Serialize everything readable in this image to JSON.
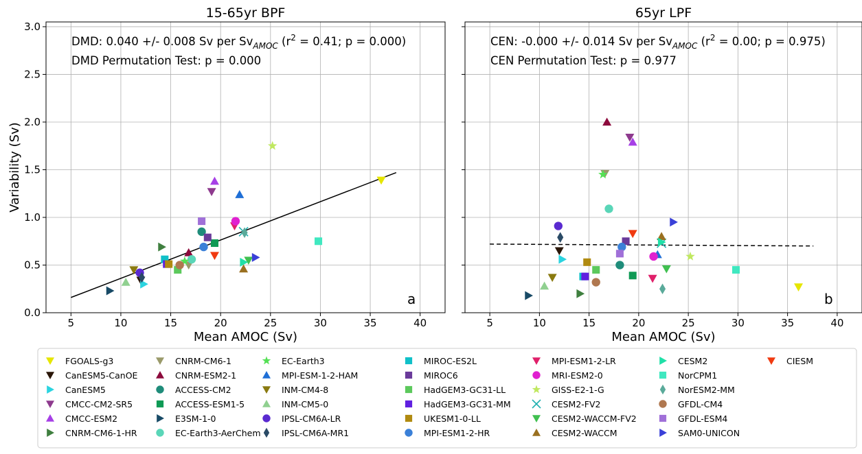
{
  "chart_data": [
    {
      "type": "scatter",
      "title": "15-65yr BPF",
      "xlabel": "Mean AMOC (Sv)",
      "ylabel": "Variability (Sv)",
      "xlim": [
        2.5,
        42.5
      ],
      "ylim": [
        0.0,
        3.05
      ],
      "xticks": [
        5,
        10,
        15,
        20,
        25,
        30,
        35,
        40
      ],
      "yticks": [
        0.0,
        0.5,
        1.0,
        1.5,
        2.0,
        2.5,
        3.0
      ],
      "ytick_labels": [
        "0.0",
        "0.5",
        "1.0",
        "1.5",
        "2.0",
        "2.5",
        "3.0"
      ],
      "grid": true,
      "annotation_line1": {
        "prefix": "DMD:  0.040 +/- 0.008 Sv per Sv",
        "sub": "AMOC",
        "mid": " (r",
        "sup": "2",
        "suffix": " = 0.41; p = 0.000)"
      },
      "annotation_line2": "DMD Permutation Test: p = 0.000",
      "panel_letter": "a",
      "fit": {
        "x": [
          5,
          37.6
        ],
        "y": [
          0.16,
          1.47
        ],
        "style": "solid"
      },
      "points": [
        {
          "model": "FGOALS-g3",
          "x": 36.1,
          "y": 1.39
        },
        {
          "model": "CanESM5-CanOE",
          "x": 12.0,
          "y": 0.34
        },
        {
          "model": "CanESM5",
          "x": 12.3,
          "y": 0.3
        },
        {
          "model": "CMCC-CM2-SR5",
          "x": 19.1,
          "y": 1.27
        },
        {
          "model": "CMCC-ESM2",
          "x": 19.4,
          "y": 1.38
        },
        {
          "model": "CNRM-CM6-1-HR",
          "x": 14.1,
          "y": 0.69
        },
        {
          "model": "CNRM-CM6-1",
          "x": 16.8,
          "y": 0.5
        },
        {
          "model": "CNRM-ESM2-1",
          "x": 16.8,
          "y": 0.63
        },
        {
          "model": "ACCESS-CM2",
          "x": 18.1,
          "y": 0.85
        },
        {
          "model": "ACCESS-ESM1-5",
          "x": 19.4,
          "y": 0.73
        },
        {
          "model": "E3SM-1-0",
          "x": 8.9,
          "y": 0.23
        },
        {
          "model": "EC-Earth3-AerChem",
          "x": 17.1,
          "y": 0.56
        },
        {
          "model": "EC-Earth3",
          "x": 16.4,
          "y": 0.54
        },
        {
          "model": "MPI-ESM-1-2-HAM",
          "x": 21.9,
          "y": 1.24
        },
        {
          "model": "INM-CM4-8",
          "x": 11.3,
          "y": 0.45
        },
        {
          "model": "INM-CM5-0",
          "x": 10.5,
          "y": 0.32
        },
        {
          "model": "IPSL-CM6A-LR",
          "x": 11.9,
          "y": 0.42
        },
        {
          "model": "IPSL-CM6A-MR1",
          "x": 12.1,
          "y": 0.37
        },
        {
          "model": "MIROC-ES2L",
          "x": 14.4,
          "y": 0.56
        },
        {
          "model": "MIROC6",
          "x": 18.7,
          "y": 0.79
        },
        {
          "model": "HadGEM3-GC31-LL",
          "x": 15.7,
          "y": 0.45
        },
        {
          "model": "HadGEM3-GC31-MM",
          "x": 14.6,
          "y": 0.51
        },
        {
          "model": "UKESM1-0-LL",
          "x": 14.8,
          "y": 0.51
        },
        {
          "model": "MPI-ESM1-2-HR",
          "x": 18.3,
          "y": 0.69
        },
        {
          "model": "MPI-ESM1-2-LR",
          "x": 21.4,
          "y": 0.91
        },
        {
          "model": "MRI-ESM2-0",
          "x": 21.5,
          "y": 0.96
        },
        {
          "model": "GISS-E2-1-G",
          "x": 25.2,
          "y": 1.75
        },
        {
          "model": "CESM2-FV2",
          "x": 22.3,
          "y": 0.85
        },
        {
          "model": "CESM2-WACCM-FV2",
          "x": 22.8,
          "y": 0.55
        },
        {
          "model": "CESM2-WACCM",
          "x": 22.3,
          "y": 0.46
        },
        {
          "model": "CESM2",
          "x": 22.3,
          "y": 0.53
        },
        {
          "model": "NorCPM1",
          "x": 29.8,
          "y": 0.75
        },
        {
          "model": "NorESM2-MM",
          "x": 22.4,
          "y": 0.84
        },
        {
          "model": "GFDL-CM4",
          "x": 15.9,
          "y": 0.5
        },
        {
          "model": "GFDL-ESM4",
          "x": 18.1,
          "y": 0.96
        },
        {
          "model": "SAM0-UNICON",
          "x": 23.5,
          "y": 0.58
        },
        {
          "model": "CIESM",
          "x": 19.4,
          "y": 0.6
        }
      ]
    },
    {
      "type": "scatter",
      "title": "65yr LPF",
      "xlabel": "Mean AMOC (Sv)",
      "ylabel": "",
      "xlim": [
        2.5,
        42.5
      ],
      "ylim": [
        0.0,
        3.05
      ],
      "xticks": [
        5,
        10,
        15,
        20,
        25,
        30,
        35,
        40
      ],
      "yticks": [
        0.0,
        0.5,
        1.0,
        1.5,
        2.0,
        2.5,
        3.0
      ],
      "grid": true,
      "annotation_line1": {
        "prefix": "CEN:  -0.000 +/- 0.014 Sv per Sv",
        "sub": "AMOC",
        "mid": " (r",
        "sup": "2",
        "suffix": " = 0.00; p = 0.975)"
      },
      "annotation_line2": "CEN Permutation Test: p = 0.977",
      "panel_letter": "b",
      "fit": {
        "x": [
          5,
          37.6
        ],
        "y": [
          0.72,
          0.7
        ],
        "style": "dashed"
      },
      "points": [
        {
          "model": "FGOALS-g3",
          "x": 36.1,
          "y": 0.27
        },
        {
          "model": "CanESM5-CanOE",
          "x": 12.0,
          "y": 0.65
        },
        {
          "model": "CanESM5",
          "x": 12.3,
          "y": 0.56
        },
        {
          "model": "CMCC-CM2-SR5",
          "x": 19.1,
          "y": 1.84
        },
        {
          "model": "CMCC-ESM2",
          "x": 19.4,
          "y": 1.79
        },
        {
          "model": "CNRM-CM6-1-HR",
          "x": 14.1,
          "y": 0.2
        },
        {
          "model": "CNRM-CM6-1",
          "x": 16.6,
          "y": 1.46
        },
        {
          "model": "CNRM-ESM2-1",
          "x": 16.8,
          "y": 2.0
        },
        {
          "model": "ACCESS-CM2",
          "x": 18.1,
          "y": 0.5
        },
        {
          "model": "ACCESS-ESM1-5",
          "x": 19.4,
          "y": 0.39
        },
        {
          "model": "E3SM-1-0",
          "x": 8.9,
          "y": 0.18
        },
        {
          "model": "EC-Earth3-AerChem",
          "x": 17.0,
          "y": 1.09
        },
        {
          "model": "EC-Earth3",
          "x": 16.4,
          "y": 1.45
        },
        {
          "model": "MPI-ESM-1-2-HAM",
          "x": 21.9,
          "y": 0.61
        },
        {
          "model": "INM-CM4-8",
          "x": 11.3,
          "y": 0.37
        },
        {
          "model": "INM-CM5-0",
          "x": 10.5,
          "y": 0.28
        },
        {
          "model": "IPSL-CM6A-LR",
          "x": 11.9,
          "y": 0.91
        },
        {
          "model": "IPSL-CM6A-MR1",
          "x": 12.1,
          "y": 0.79
        },
        {
          "model": "MIROC-ES2L",
          "x": 14.4,
          "y": 0.38
        },
        {
          "model": "MIROC6",
          "x": 18.7,
          "y": 0.75
        },
        {
          "model": "HadGEM3-GC31-LL",
          "x": 15.7,
          "y": 0.45
        },
        {
          "model": "HadGEM3-GC31-MM",
          "x": 14.6,
          "y": 0.38
        },
        {
          "model": "UKESM1-0-LL",
          "x": 14.8,
          "y": 0.53
        },
        {
          "model": "MPI-ESM1-2-HR",
          "x": 18.3,
          "y": 0.69
        },
        {
          "model": "MPI-ESM1-2-LR",
          "x": 21.4,
          "y": 0.36
        },
        {
          "model": "MRI-ESM2-0",
          "x": 21.5,
          "y": 0.59
        },
        {
          "model": "GISS-E2-1-G",
          "x": 25.2,
          "y": 0.59
        },
        {
          "model": "CESM2-FV2",
          "x": 22.3,
          "y": 0.73
        },
        {
          "model": "CESM2-WACCM-FV2",
          "x": 22.8,
          "y": 0.46
        },
        {
          "model": "CESM2-WACCM",
          "x": 22.3,
          "y": 0.8
        },
        {
          "model": "CESM2",
          "x": 22.3,
          "y": 0.74
        },
        {
          "model": "NorCPM1",
          "x": 29.8,
          "y": 0.45
        },
        {
          "model": "NorESM2-MM",
          "x": 22.4,
          "y": 0.25
        },
        {
          "model": "GFDL-CM4",
          "x": 15.7,
          "y": 0.32
        },
        {
          "model": "GFDL-ESM4",
          "x": 18.1,
          "y": 0.62
        },
        {
          "model": "SAM0-UNICON",
          "x": 23.5,
          "y": 0.95
        },
        {
          "model": "CIESM",
          "x": 19.4,
          "y": 0.83
        }
      ]
    }
  ],
  "legend": [
    {
      "label": "FGOALS-g3",
      "marker": "triangle-down",
      "color": "#e6e600"
    },
    {
      "label": "CanESM5-CanOE",
      "marker": "triangle-down",
      "color": "#2a1608"
    },
    {
      "label": "CanESM5",
      "marker": "triangle-right",
      "color": "#2bd4e0"
    },
    {
      "label": "CMCC-CM2-SR5",
      "marker": "triangle-down",
      "color": "#8e3a8e"
    },
    {
      "label": "CMCC-ESM2",
      "marker": "triangle-up",
      "color": "#a63fe6"
    },
    {
      "label": "CNRM-CM6-1-HR",
      "marker": "triangle-right",
      "color": "#3f7f3f"
    },
    {
      "label": "CNRM-CM6-1",
      "marker": "triangle-down",
      "color": "#9a9a6a"
    },
    {
      "label": "CNRM-ESM2-1",
      "marker": "triangle-up",
      "color": "#8c0a3c"
    },
    {
      "label": "ACCESS-CM2",
      "marker": "circle",
      "color": "#1f8c7a"
    },
    {
      "label": "ACCESS-ESM1-5",
      "marker": "square",
      "color": "#0f9a55"
    },
    {
      "label": "E3SM-1-0",
      "marker": "triangle-right",
      "color": "#184a66"
    },
    {
      "label": "EC-Earth3-AerChem",
      "marker": "circle",
      "color": "#5ad6b8"
    },
    {
      "label": "EC-Earth3",
      "marker": "star",
      "color": "#55e055"
    },
    {
      "label": "MPI-ESM-1-2-HAM",
      "marker": "triangle-up",
      "color": "#1f6fd6"
    },
    {
      "label": "INM-CM4-8",
      "marker": "triangle-down",
      "color": "#8a7a10"
    },
    {
      "label": "INM-CM5-0",
      "marker": "triangle-up",
      "color": "#90d090"
    },
    {
      "label": "IPSL-CM6A-LR",
      "marker": "circle",
      "color": "#5a2ad0"
    },
    {
      "label": "IPSL-CM6A-MR1",
      "marker": "diamond",
      "color": "#2a4a66"
    },
    {
      "label": "MIROC-ES2L",
      "marker": "square",
      "color": "#10c0c8"
    },
    {
      "label": "MIROC6",
      "marker": "square",
      "color": "#6a3a9a"
    },
    {
      "label": "HadGEM3-GC31-LL",
      "marker": "square",
      "color": "#5cc95c"
    },
    {
      "label": "HadGEM3-GC31-MM",
      "marker": "square",
      "color": "#6020e0"
    },
    {
      "label": "UKESM1-0-LL",
      "marker": "square",
      "color": "#b08a10"
    },
    {
      "label": "MPI-ESM1-2-HR",
      "marker": "circle",
      "color": "#3a80d8"
    },
    {
      "label": "MPI-ESM1-2-LR",
      "marker": "triangle-down",
      "color": "#e0206a"
    },
    {
      "label": "MRI-ESM2-0",
      "marker": "circle",
      "color": "#e020d0"
    },
    {
      "label": "GISS-E2-1-G",
      "marker": "star",
      "color": "#c0e860"
    },
    {
      "label": "CESM2-FV2",
      "marker": "x",
      "color": "#20b0b0"
    },
    {
      "label": "CESM2-WACCM-FV2",
      "marker": "triangle-down",
      "color": "#40c050"
    },
    {
      "label": "CESM2-WACCM",
      "marker": "triangle-up",
      "color": "#9a7020"
    },
    {
      "label": "CESM2",
      "marker": "triangle-right",
      "color": "#20e0a8"
    },
    {
      "label": "NorCPM1",
      "marker": "square",
      "color": "#40e8c0"
    },
    {
      "label": "NorESM2-MM",
      "marker": "diamond",
      "color": "#5aaa9a"
    },
    {
      "label": "GFDL-CM4",
      "marker": "circle",
      "color": "#b07850"
    },
    {
      "label": "GFDL-ESM4",
      "marker": "square",
      "color": "#a070d8"
    },
    {
      "label": "SAM0-UNICON",
      "marker": "triangle-right",
      "color": "#3a40d8"
    },
    {
      "label": "CIESM",
      "marker": "triangle-down",
      "color": "#f03a10"
    }
  ]
}
